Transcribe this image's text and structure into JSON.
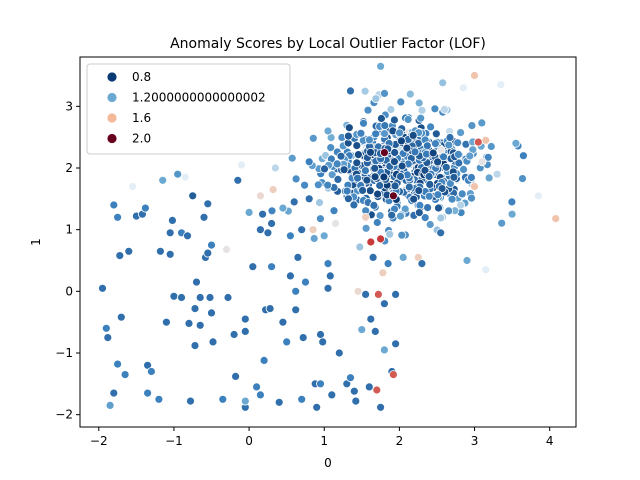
{
  "chart_data": {
    "type": "scatter",
    "title": "Anomaly Scores by Local Outlier Factor (LOF)",
    "xlabel": "0",
    "ylabel": "1",
    "xlim": [
      -2.25,
      4.35
    ],
    "ylim": [
      -2.2,
      3.8
    ],
    "xticks": [
      -2,
      -1,
      0,
      1,
      2,
      3,
      4
    ],
    "yticks": [
      -2,
      -1,
      0,
      1,
      2,
      3
    ],
    "grid": false,
    "legend_position": "top-left",
    "color_scale": {
      "name": "RdBu_r",
      "stops": [
        {
          "value": 0.8,
          "color": "#0b3b75"
        },
        {
          "value": 1.0,
          "color": "#3c80bd"
        },
        {
          "value": 1.2,
          "color": "#6ca9d2"
        },
        {
          "value": 1.35,
          "color": "#e4eef6"
        },
        {
          "value": 1.6,
          "color": "#f4b89a"
        },
        {
          "value": 1.8,
          "color": "#c73a3a"
        },
        {
          "value": 2.0,
          "color": "#67001f"
        }
      ]
    },
    "legend": [
      {
        "label": "0.8",
        "value": 0.8,
        "color": "#0b3b75"
      },
      {
        "label": "1.2000000000000002",
        "value": 1.2,
        "color": "#6ca9d2"
      },
      {
        "label": "1.6",
        "value": 1.6,
        "color": "#f4b89a"
      },
      {
        "label": "2.0",
        "value": 2.0,
        "color": "#67001f"
      }
    ],
    "cluster": {
      "description": "dense main cluster centered near (2, 2)",
      "center": [
        2.0,
        2.0
      ],
      "spread": [
        0.5,
        0.45
      ],
      "count": 620
    },
    "points": [
      {
        "x": -1.95,
        "y": 0.05,
        "score": 0.95
      },
      {
        "x": -1.9,
        "y": -0.6,
        "score": 1.0
      },
      {
        "x": -1.88,
        "y": -0.75,
        "score": 0.95
      },
      {
        "x": -1.85,
        "y": -1.85,
        "score": 1.15
      },
      {
        "x": -1.8,
        "y": -1.65,
        "score": 0.95
      },
      {
        "x": -1.8,
        "y": 1.4,
        "score": 1.0
      },
      {
        "x": -1.7,
        "y": -0.42,
        "score": 0.95
      },
      {
        "x": -1.72,
        "y": 0.58,
        "score": 0.95
      },
      {
        "x": -1.75,
        "y": 1.2,
        "score": 1.0
      },
      {
        "x": -1.75,
        "y": -1.18,
        "score": 1.0
      },
      {
        "x": -1.6,
        "y": 0.65,
        "score": 0.95
      },
      {
        "x": -1.65,
        "y": -1.35,
        "score": 1.0
      },
      {
        "x": -1.55,
        "y": 1.7,
        "score": 1.35
      },
      {
        "x": -1.5,
        "y": 1.22,
        "score": 0.95
      },
      {
        "x": -1.42,
        "y": 1.25,
        "score": 0.95
      },
      {
        "x": -1.38,
        "y": 1.35,
        "score": 1.0
      },
      {
        "x": -1.35,
        "y": -1.2,
        "score": 0.95
      },
      {
        "x": -1.35,
        "y": -1.65,
        "score": 1.0
      },
      {
        "x": -1.3,
        "y": -1.3,
        "score": 1.0
      },
      {
        "x": -1.2,
        "y": -1.75,
        "score": 1.0
      },
      {
        "x": -1.18,
        "y": 0.65,
        "score": 0.95
      },
      {
        "x": -1.15,
        "y": 1.8,
        "score": 1.2
      },
      {
        "x": -1.1,
        "y": -0.5,
        "score": 0.95
      },
      {
        "x": -1.05,
        "y": 0.6,
        "score": 0.95
      },
      {
        "x": -1.05,
        "y": 0.95,
        "score": 0.95
      },
      {
        "x": -1.02,
        "y": 1.15,
        "score": 0.95
      },
      {
        "x": -1.0,
        "y": -0.08,
        "score": 0.95
      },
      {
        "x": -0.95,
        "y": 1.9,
        "score": 1.1
      },
      {
        "x": -0.9,
        "y": -0.1,
        "score": 0.95
      },
      {
        "x": -0.9,
        "y": 0.95,
        "score": 1.0
      },
      {
        "x": -0.85,
        "y": 1.85,
        "score": 1.35
      },
      {
        "x": -0.82,
        "y": 0.9,
        "score": 0.95
      },
      {
        "x": -0.8,
        "y": -0.52,
        "score": 0.95
      },
      {
        "x": -0.78,
        "y": -1.78,
        "score": 0.95
      },
      {
        "x": -0.75,
        "y": 1.55,
        "score": 0.9
      },
      {
        "x": -0.72,
        "y": -0.28,
        "score": 0.95
      },
      {
        "x": -0.72,
        "y": -0.88,
        "score": 0.95
      },
      {
        "x": -0.7,
        "y": 0.15,
        "score": 0.95
      },
      {
        "x": -0.65,
        "y": -0.55,
        "score": 0.95
      },
      {
        "x": -0.65,
        "y": -0.1,
        "score": 0.95
      },
      {
        "x": -0.6,
        "y": 1.2,
        "score": 0.95
      },
      {
        "x": -0.58,
        "y": 0.55,
        "score": 0.95
      },
      {
        "x": -0.55,
        "y": 0.62,
        "score": 0.95
      },
      {
        "x": -0.55,
        "y": 1.42,
        "score": 0.95
      },
      {
        "x": -0.52,
        "y": -0.1,
        "score": 0.95
      },
      {
        "x": -0.5,
        "y": 0.75,
        "score": 1.0
      },
      {
        "x": -0.5,
        "y": -0.35,
        "score": 0.95
      },
      {
        "x": -0.48,
        "y": -0.82,
        "score": 0.95
      },
      {
        "x": -0.35,
        "y": -1.75,
        "score": 1.0
      },
      {
        "x": -0.3,
        "y": 0.68,
        "score": 1.4
      },
      {
        "x": -0.28,
        "y": -0.1,
        "score": 0.95
      },
      {
        "x": -0.2,
        "y": -0.7,
        "score": 0.95
      },
      {
        "x": -0.18,
        "y": -1.38,
        "score": 0.95
      },
      {
        "x": -0.15,
        "y": 1.8,
        "score": 0.95
      },
      {
        "x": -0.1,
        "y": 2.05,
        "score": 1.35
      },
      {
        "x": -0.05,
        "y": -0.65,
        "score": 0.95
      },
      {
        "x": -0.05,
        "y": -0.45,
        "score": 0.95
      },
      {
        "x": -0.05,
        "y": -1.88,
        "score": 0.95
      },
      {
        "x": -0.05,
        "y": -1.78,
        "score": 1.2
      },
      {
        "x": 0.0,
        "y": 1.28,
        "score": 1.2
      },
      {
        "x": 0.05,
        "y": 0.4,
        "score": 0.95
      },
      {
        "x": 0.1,
        "y": -1.55,
        "score": 1.0
      },
      {
        "x": 0.15,
        "y": 1.0,
        "score": 0.95
      },
      {
        "x": 0.15,
        "y": 1.55,
        "score": 1.45
      },
      {
        "x": 0.15,
        "y": -1.68,
        "score": 1.0
      },
      {
        "x": 0.18,
        "y": 1.25,
        "score": 0.95
      },
      {
        "x": 0.2,
        "y": -1.12,
        "score": 1.0
      },
      {
        "x": 0.22,
        "y": -0.3,
        "score": 0.95
      },
      {
        "x": 0.25,
        "y": 0.95,
        "score": 0.95
      },
      {
        "x": 0.28,
        "y": -0.28,
        "score": 0.95
      },
      {
        "x": 0.3,
        "y": 0.4,
        "score": 1.0
      },
      {
        "x": 0.3,
        "y": 1.1,
        "score": 0.95
      },
      {
        "x": 0.32,
        "y": 1.65,
        "score": 1.5
      },
      {
        "x": 0.35,
        "y": 2.0,
        "score": 1.3
      },
      {
        "x": 0.4,
        "y": -1.8,
        "score": 0.95
      },
      {
        "x": 0.45,
        "y": 1.35,
        "score": 1.2
      },
      {
        "x": 0.45,
        "y": -0.5,
        "score": 0.95
      },
      {
        "x": 0.5,
        "y": -0.82,
        "score": 1.0
      },
      {
        "x": 0.55,
        "y": 0.25,
        "score": 0.95
      },
      {
        "x": 0.55,
        "y": 0.9,
        "score": 1.0
      },
      {
        "x": 0.6,
        "y": 1.45,
        "score": 0.95
      },
      {
        "x": 0.62,
        "y": -0.3,
        "score": 0.95
      },
      {
        "x": 0.62,
        "y": 0.0,
        "score": 1.0
      },
      {
        "x": 0.65,
        "y": 0.55,
        "score": 0.95
      },
      {
        "x": 0.7,
        "y": 1.0,
        "score": 0.95
      },
      {
        "x": 0.7,
        "y": -1.75,
        "score": 1.0
      },
      {
        "x": 0.72,
        "y": -0.75,
        "score": 0.95
      },
      {
        "x": 0.75,
        "y": 0.15,
        "score": 1.0
      },
      {
        "x": 0.8,
        "y": 1.5,
        "score": 0.95
      },
      {
        "x": 0.8,
        "y": 2.1,
        "score": 1.0
      },
      {
        "x": 0.85,
        "y": 1.0,
        "score": 1.5
      },
      {
        "x": 0.88,
        "y": -1.5,
        "score": 0.95
      },
      {
        "x": 0.9,
        "y": -1.88,
        "score": 0.95
      },
      {
        "x": 0.95,
        "y": -1.5,
        "score": 1.0
      },
      {
        "x": 0.95,
        "y": -0.7,
        "score": 0.95
      },
      {
        "x": 0.98,
        "y": -0.82,
        "score": 0.95
      },
      {
        "x": 1.0,
        "y": 0.9,
        "score": 1.2
      },
      {
        "x": 1.05,
        "y": 0.05,
        "score": 0.95
      },
      {
        "x": 1.05,
        "y": 0.45,
        "score": 1.0
      },
      {
        "x": 1.08,
        "y": 0.25,
        "score": 0.95
      },
      {
        "x": 1.1,
        "y": -1.68,
        "score": 0.95
      },
      {
        "x": 1.15,
        "y": 1.1,
        "score": 1.4
      },
      {
        "x": 1.2,
        "y": -1.0,
        "score": 0.95
      },
      {
        "x": 1.3,
        "y": -1.5,
        "score": 0.95
      },
      {
        "x": 1.35,
        "y": -1.4,
        "score": 1.0
      },
      {
        "x": 1.4,
        "y": -1.62,
        "score": 0.95
      },
      {
        "x": 1.42,
        "y": -1.78,
        "score": 0.95
      },
      {
        "x": 1.45,
        "y": 0.0,
        "score": 1.45
      },
      {
        "x": 1.5,
        "y": -0.62,
        "score": 1.2
      },
      {
        "x": 1.55,
        "y": -0.05,
        "score": 0.95
      },
      {
        "x": 1.6,
        "y": -1.55,
        "score": 0.95
      },
      {
        "x": 1.62,
        "y": -0.45,
        "score": 0.95
      },
      {
        "x": 1.65,
        "y": 0.55,
        "score": 0.95
      },
      {
        "x": 1.68,
        "y": -0.65,
        "score": 0.95
      },
      {
        "x": 1.7,
        "y": -1.6,
        "score": 1.75
      },
      {
        "x": 1.72,
        "y": -0.05,
        "score": 1.75
      },
      {
        "x": 1.75,
        "y": 0.85,
        "score": 1.8
      },
      {
        "x": 1.75,
        "y": -1.88,
        "score": 0.95
      },
      {
        "x": 1.78,
        "y": 0.3,
        "score": 1.5
      },
      {
        "x": 1.8,
        "y": -0.2,
        "score": 0.95
      },
      {
        "x": 1.8,
        "y": -0.95,
        "score": 1.2
      },
      {
        "x": 1.85,
        "y": 0.45,
        "score": 1.0
      },
      {
        "x": 1.9,
        "y": -1.3,
        "score": 0.95
      },
      {
        "x": 1.92,
        "y": -1.35,
        "score": 1.75
      },
      {
        "x": 1.92,
        "y": 1.55,
        "score": 2.0
      },
      {
        "x": 1.95,
        "y": -0.85,
        "score": 0.95
      },
      {
        "x": 1.95,
        "y": -0.05,
        "score": 0.95
      },
      {
        "x": 2.05,
        "y": 0.55,
        "score": 1.2
      },
      {
        "x": 2.25,
        "y": 0.55,
        "score": 1.5
      },
      {
        "x": 2.3,
        "y": 0.45,
        "score": 0.95
      },
      {
        "x": 2.55,
        "y": 0.95,
        "score": 0.95
      },
      {
        "x": 2.6,
        "y": 2.95,
        "score": 1.3
      },
      {
        "x": 2.85,
        "y": 3.3,
        "score": 1.35
      },
      {
        "x": 2.9,
        "y": 0.5,
        "score": 1.2
      },
      {
        "x": 3.0,
        "y": 1.7,
        "score": 1.55
      },
      {
        "x": 3.0,
        "y": 3.5,
        "score": 1.55
      },
      {
        "x": 3.1,
        "y": 2.1,
        "score": 1.4
      },
      {
        "x": 3.15,
        "y": 2.45,
        "score": 1.55
      },
      {
        "x": 3.15,
        "y": 0.35,
        "score": 1.35
      },
      {
        "x": 3.3,
        "y": 1.9,
        "score": 1.3
      },
      {
        "x": 3.35,
        "y": 3.35,
        "score": 1.35
      },
      {
        "x": 3.5,
        "y": 1.25,
        "score": 1.2
      },
      {
        "x": 3.55,
        "y": 2.4,
        "score": 1.2
      },
      {
        "x": 3.65,
        "y": 2.2,
        "score": 1.0
      },
      {
        "x": 3.85,
        "y": 1.55,
        "score": 1.35
      },
      {
        "x": 4.08,
        "y": 1.18,
        "score": 1.55
      },
      {
        "x": 1.75,
        "y": 3.65,
        "score": 1.2
      },
      {
        "x": 1.35,
        "y": 3.25,
        "score": 0.95
      },
      {
        "x": 1.55,
        "y": 1.2,
        "score": 1.5
      },
      {
        "x": 1.62,
        "y": 0.8,
        "score": 1.8
      },
      {
        "x": 1.05,
        "y": 2.6,
        "score": 1.2
      },
      {
        "x": 1.8,
        "y": 2.25,
        "score": 2.0
      },
      {
        "x": 3.05,
        "y": 2.42,
        "score": 1.75
      }
    ]
  }
}
